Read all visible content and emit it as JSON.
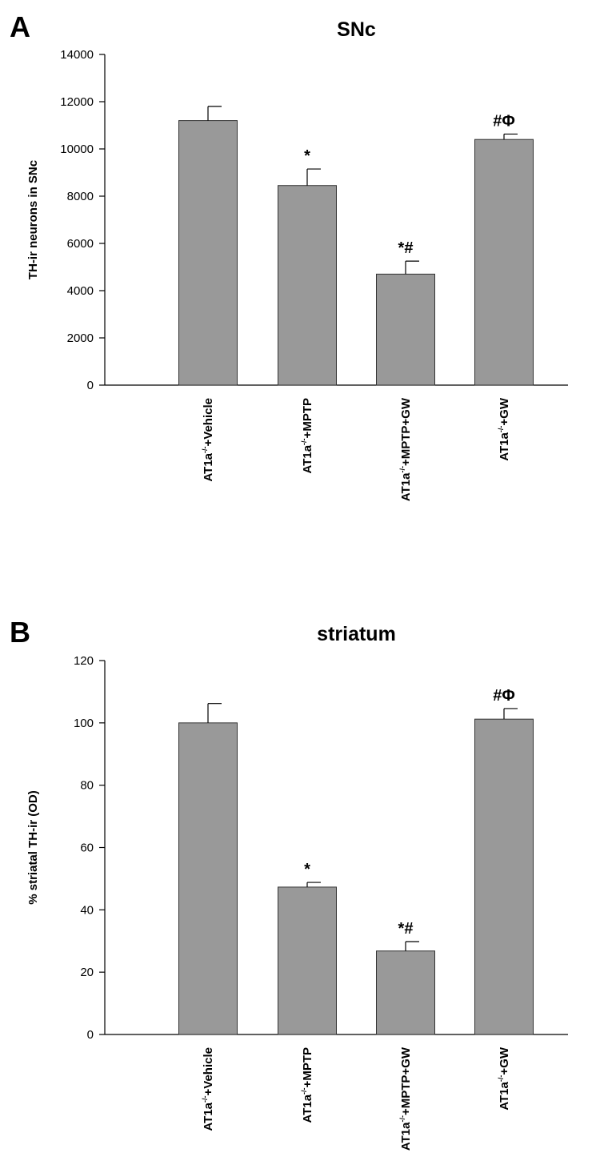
{
  "chart_data": [
    {
      "type": "bar",
      "panel_label": "A",
      "title": "SNc",
      "xlabel": "",
      "ylabel": "TH-ir neurons in SNc",
      "ylim": [
        0,
        14000
      ],
      "yticks": [
        0,
        2000,
        4000,
        6000,
        8000,
        10000,
        12000,
        14000
      ],
      "grid": false,
      "categories": [
        {
          "base": "AT1a",
          "sup": "-/-",
          "suffix": "+Vehicle"
        },
        {
          "base": "AT1a",
          "sup": "-/-",
          "suffix": "+MPTP"
        },
        {
          "base": "AT1a",
          "sup": "-/-",
          "suffix": "+MPTP+GW"
        },
        {
          "base": "AT1a",
          "sup": "-/-",
          "suffix": "+GW"
        }
      ],
      "values": [
        11200,
        8450,
        4700,
        10400
      ],
      "errors": [
        600,
        700,
        550,
        230
      ],
      "annotations": [
        "",
        "*",
        "*#",
        "#Φ"
      ]
    },
    {
      "type": "bar",
      "panel_label": "B",
      "title": "striatum",
      "xlabel": "",
      "ylabel": "% striatal TH-ir (OD)",
      "ylim": [
        0,
        120
      ],
      "yticks": [
        0,
        20,
        40,
        60,
        80,
        100,
        120
      ],
      "grid": false,
      "categories": [
        {
          "base": "AT1a",
          "sup": "-/-",
          "suffix": "+Vehicle"
        },
        {
          "base": "AT1a",
          "sup": "-/-",
          "suffix": "+MPTP"
        },
        {
          "base": "AT1a",
          "sup": "-/-",
          "suffix": "+MPTP+GW"
        },
        {
          "base": "AT1a",
          "sup": "-/-",
          "suffix": "+GW"
        }
      ],
      "values": [
        100,
        47.3,
        26.8,
        101.2
      ],
      "errors": [
        6.2,
        1.5,
        3.0,
        3.4
      ],
      "annotations": [
        "",
        "*",
        "*#",
        "#Φ"
      ]
    }
  ]
}
